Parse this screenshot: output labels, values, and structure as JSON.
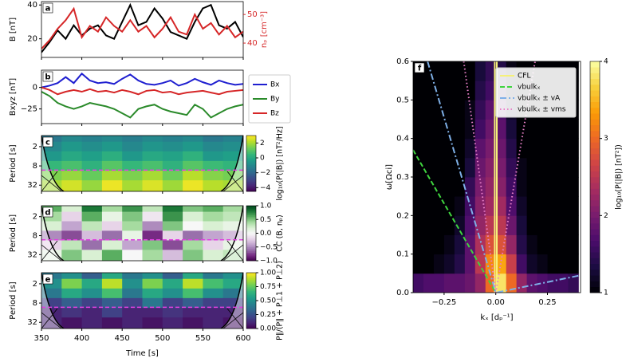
{
  "chart_data": [
    {
      "type": "line",
      "label": "a",
      "ylabel": "B [nT]",
      "y2label": "nₚ [cm⁻³]",
      "y2color": "#d62728",
      "x": [
        350,
        360,
        370,
        380,
        390,
        400,
        410,
        420,
        430,
        440,
        450,
        460,
        470,
        480,
        490,
        500,
        510,
        520,
        530,
        540,
        550,
        560,
        570,
        580,
        590,
        600
      ],
      "xlim": [
        350,
        600
      ],
      "xticks": [
        350,
        400,
        450,
        500,
        550,
        600
      ],
      "xticklabels": false,
      "ylim": [
        9,
        42
      ],
      "yticks": [
        20,
        40
      ],
      "y2lim": [
        35,
        54.5
      ],
      "y2ticks": [
        40,
        50
      ],
      "series": [
        {
          "name": "B",
          "color": "#000000",
          "values": [
            12,
            18,
            25,
            20,
            28,
            22,
            26,
            28,
            22,
            20,
            30,
            40,
            28,
            30,
            38,
            32,
            24,
            22,
            20,
            30,
            38,
            40,
            28,
            26,
            30,
            21
          ]
        },
        {
          "name": "nₚ",
          "color": "#d62728",
          "axis": "y2",
          "values": [
            38,
            41,
            45,
            48,
            52,
            42,
            46,
            44,
            49,
            46,
            44,
            48,
            44,
            46,
            42,
            45,
            49,
            44,
            43,
            50,
            45,
            47,
            43,
            46,
            42,
            44
          ]
        }
      ]
    },
    {
      "type": "line",
      "label": "b",
      "ylabel": "Bxyz [nT]",
      "legend": "outside right",
      "x": [
        350,
        360,
        370,
        380,
        390,
        400,
        410,
        420,
        430,
        440,
        450,
        460,
        470,
        480,
        490,
        500,
        510,
        520,
        530,
        540,
        550,
        560,
        570,
        580,
        590,
        600
      ],
      "xlim": [
        350,
        600
      ],
      "xticks": [
        350,
        400,
        450,
        500,
        550,
        600
      ],
      "xticklabels": false,
      "ylim": [
        -42,
        20
      ],
      "yticks": [
        {
          "value": -25,
          "label": "−25"
        },
        0
      ],
      "series": [
        {
          "name": "Bx",
          "color": "#1f1fd0",
          "values": [
            0,
            2,
            5,
            12,
            5,
            16,
            8,
            5,
            6,
            4,
            10,
            15,
            8,
            4,
            3,
            5,
            8,
            2,
            5,
            10,
            6,
            3,
            8,
            5,
            3,
            4
          ]
        },
        {
          "name": "By",
          "color": "#2a8a2a",
          "values": [
            -5,
            -10,
            -18,
            -22,
            -25,
            -22,
            -18,
            -20,
            -22,
            -25,
            -30,
            -35,
            -25,
            -22,
            -20,
            -25,
            -28,
            -30,
            -32,
            -20,
            -25,
            -35,
            -30,
            -25,
            -22,
            -20
          ]
        },
        {
          "name": "Bz",
          "color": "#d62728",
          "values": [
            0,
            -3,
            -8,
            -5,
            -3,
            -5,
            -2,
            -5,
            -4,
            -6,
            -3,
            -5,
            -8,
            -4,
            -3,
            -6,
            -5,
            -8,
            -6,
            -5,
            -4,
            -6,
            -8,
            -5,
            -4,
            -3
          ]
        }
      ]
    },
    {
      "type": "heatmap",
      "label": "c",
      "ylabel": "Period [s]",
      "colormap": "viridis",
      "ylog": true,
      "yinvert": true,
      "xlim": [
        350,
        600
      ],
      "xticks": [
        350,
        400,
        450,
        500,
        550,
        600
      ],
      "xticklabels": false,
      "ylim": [
        0.9,
        50
      ],
      "yticks": [
        2,
        8,
        32
      ],
      "xbins": [
        350,
        375,
        400,
        425,
        450,
        475,
        500,
        525,
        550,
        575,
        600
      ],
      "ybins": [
        0.9,
        1.4,
        2.8,
        5.6,
        11.3,
        22.6,
        50
      ],
      "z": [
        [
          -1.5,
          -1,
          -1.2,
          -1,
          -1.3,
          -1,
          -1.2,
          -1,
          -1.5,
          -1.2
        ],
        [
          -1,
          -0.5,
          -0.8,
          -0.5,
          -1,
          -0.6,
          -0.8,
          -0.5,
          -1,
          -0.8
        ],
        [
          -0.5,
          0,
          -0.3,
          0.2,
          -0.5,
          0,
          -0.2,
          0.3,
          -0.5,
          -0.3
        ],
        [
          0.5,
          0.8,
          0.3,
          1,
          0.5,
          0.8,
          0.3,
          1,
          0.6,
          0.4
        ],
        [
          1.5,
          1.8,
          1.2,
          2,
          1.5,
          2,
          1.3,
          2.2,
          1.6,
          1.4
        ],
        [
          2,
          2.5,
          1.8,
          2.8,
          2,
          2.6,
          1.9,
          2.8,
          2.2,
          2
        ]
      ],
      "colorbar": {
        "clim": [
          -4.5,
          3
        ],
        "ticks": [
          {
            "value": -4,
            "label": "−4"
          },
          {
            "value": -2,
            "label": "−2"
          },
          0,
          2
        ],
        "label": "log₁₀(P(|B|) [nT²/Hz]"
      }
    },
    {
      "type": "heatmap",
      "label": "d",
      "ylabel": "Period [s]",
      "colormap": "PRGn",
      "ylog": true,
      "yinvert": true,
      "xlim": [
        350,
        600
      ],
      "xticks": [
        350,
        400,
        450,
        500,
        550,
        600
      ],
      "xticklabels": false,
      "ylim": [
        0.9,
        50
      ],
      "yticks": [
        2,
        8,
        32
      ],
      "xbins": [
        350,
        375,
        400,
        425,
        450,
        475,
        500,
        525,
        550,
        575,
        600
      ],
      "ybins": [
        0.9,
        1.4,
        2.8,
        5.6,
        11.3,
        22.6,
        50
      ],
      "z": [
        [
          0.6,
          0.2,
          0.8,
          0.4,
          0.7,
          0.3,
          0.8,
          0.5,
          0.6,
          0.4
        ],
        [
          0.4,
          -0.2,
          0.6,
          0.1,
          0.5,
          -0.1,
          0.7,
          0.2,
          0.4,
          0.3
        ],
        [
          0.2,
          -0.4,
          0.3,
          -0.2,
          0.4,
          -0.5,
          0.5,
          0,
          0.2,
          0.1
        ],
        [
          -0.5,
          -0.7,
          -0.3,
          -0.6,
          0.1,
          -0.8,
          -0.2,
          -0.6,
          -0.4,
          -0.3
        ],
        [
          -0.2,
          0.3,
          -0.6,
          0.2,
          -0.4,
          0.5,
          -0.7,
          0.4,
          -0.2,
          0.1
        ],
        [
          0.1,
          0.5,
          0.2,
          0.6,
          0,
          0.4,
          -0.3,
          0.5,
          0.2,
          0.3
        ]
      ],
      "colorbar": {
        "clim": [
          -1,
          1
        ],
        "ticks": [
          {
            "value": -1,
            "label": "−1.0"
          },
          {
            "value": -0.5,
            "label": "−0.5"
          },
          {
            "value": 0,
            "label": "0.0"
          },
          {
            "value": 0.5,
            "label": "0.5"
          },
          {
            "value": 1,
            "label": "1.0"
          }
        ],
        "label": "CC (B, nₚ)"
      }
    },
    {
      "type": "heatmap",
      "label": "e",
      "ylabel": "Period [s]",
      "xlabel": "Time [s]",
      "colormap": "viridis",
      "ylog": true,
      "yinvert": true,
      "xlim": [
        350,
        600
      ],
      "xticks": [
        350,
        400,
        450,
        500,
        550,
        600
      ],
      "ylim": [
        0.9,
        50
      ],
      "yticks": [
        2,
        8,
        32
      ],
      "xbins": [
        350,
        375,
        400,
        425,
        450,
        475,
        500,
        525,
        550,
        575,
        600
      ],
      "ybins": [
        0.9,
        1.4,
        2.8,
        5.6,
        11.3,
        22.6,
        50
      ],
      "z": [
        [
          0.4,
          0.5,
          0.3,
          0.6,
          0.4,
          0.5,
          0.3,
          0.6,
          0.4,
          0.5
        ],
        [
          0.5,
          0.8,
          0.6,
          0.9,
          0.5,
          0.8,
          0.6,
          0.9,
          0.7,
          0.6
        ],
        [
          0.4,
          0.6,
          0.5,
          0.7,
          0.4,
          0.6,
          0.5,
          0.7,
          0.5,
          0.4
        ],
        [
          0.2,
          0.3,
          0.2,
          0.3,
          0.2,
          0.4,
          0.2,
          0.3,
          0.2,
          0.2
        ],
        [
          0.1,
          0.15,
          0.1,
          0.2,
          0.1,
          0.1,
          0.15,
          0.1,
          0.1,
          0.1
        ],
        [
          0.1,
          0.05,
          0.1,
          0.05,
          0.1,
          0.05,
          0.1,
          0.05,
          0.1,
          0.05
        ]
      ],
      "colorbar": {
        "clim": [
          0,
          1
        ],
        "ticks": [
          {
            "value": 0,
            "label": "0.00"
          },
          {
            "value": 0.25,
            "label": "0.25"
          },
          {
            "value": 0.5,
            "label": "0.50"
          },
          {
            "value": 0.75,
            "label": "0.75"
          },
          {
            "value": 1,
            "label": "1.00"
          }
        ],
        "label": "P∥/(P∥ + P⊥1 + P⊥2)"
      }
    },
    {
      "type": "heatmap",
      "label": "f",
      "xlabel": "kₓ [dₚ⁻¹]",
      "ylabel": "ω[Ωci]",
      "colormap": "inferno",
      "legend": "upper right",
      "xlim": [
        -0.4,
        0.41
      ],
      "xticks": [
        {
          "value": -0.25,
          "label": "−0.25"
        },
        {
          "value": 0,
          "label": "0.00"
        },
        {
          "value": 0.25,
          "label": "0.25"
        }
      ],
      "ylim": [
        0,
        0.6
      ],
      "yticks": [
        {
          "value": 0,
          "label": "0.0"
        },
        {
          "value": 0.1,
          "label": "0.1"
        },
        {
          "value": 0.2,
          "label": "0.2"
        },
        {
          "value": 0.3,
          "label": "0.3"
        },
        {
          "value": 0.4,
          "label": "0.4"
        },
        {
          "value": 0.5,
          "label": "0.5"
        },
        {
          "value": 0.6,
          "label": "0.6"
        }
      ],
      "xbins": [
        -0.4,
        -0.35,
        -0.3,
        -0.25,
        -0.2,
        -0.15,
        -0.1,
        -0.05,
        0,
        0.05,
        0.1,
        0.15,
        0.2,
        0.25,
        0.3,
        0.35,
        0.4
      ],
      "ybins": [
        0,
        0.05,
        0.1,
        0.15,
        0.2,
        0.25,
        0.3,
        0.35,
        0.4,
        0.45,
        0.5,
        0.55,
        0.6
      ],
      "z": [
        [
          1.6,
          1.7,
          1.7,
          1.8,
          1.8,
          1.9,
          2.2,
          3.0,
          3.8,
          3.0,
          2.2,
          1.8,
          1.7,
          1.6,
          1.6,
          1.5
        ],
        [
          1,
          1,
          1.1,
          1.2,
          1.4,
          1.8,
          2.5,
          3.2,
          3.4,
          2.6,
          1.6,
          1.2,
          1.1,
          1,
          1,
          1
        ],
        [
          1,
          1,
          1,
          1.1,
          1.3,
          1.8,
          2.4,
          2.8,
          2.8,
          2.2,
          1.4,
          1.1,
          1,
          1,
          1,
          1
        ],
        [
          1,
          1,
          1,
          1,
          1.2,
          1.7,
          2.2,
          2.5,
          2.5,
          1.9,
          1.3,
          1,
          1,
          1,
          1,
          1
        ],
        [
          1,
          1,
          1,
          1,
          1.1,
          1.6,
          2.1,
          2.3,
          2.3,
          1.7,
          1.2,
          1,
          1,
          1,
          1,
          1
        ],
        [
          1,
          1,
          1,
          1,
          1,
          1.5,
          2,
          2.2,
          2.1,
          1.6,
          1.1,
          1,
          1,
          1,
          1,
          1
        ],
        [
          1,
          1,
          1,
          1,
          1,
          1.3,
          1.9,
          2.1,
          2,
          1.5,
          1.1,
          1,
          1,
          1,
          1,
          1
        ],
        [
          1,
          1,
          1,
          1,
          1,
          1.2,
          1.8,
          2,
          1.9,
          1.4,
          1,
          1,
          1,
          1,
          1,
          1
        ],
        [
          1,
          1,
          1,
          1,
          1,
          1.1,
          1.6,
          1.9,
          1.8,
          1.3,
          1,
          1,
          1,
          1,
          1,
          1
        ],
        [
          1,
          1,
          1,
          1,
          1,
          1.1,
          1.5,
          1.8,
          1.7,
          1.2,
          1,
          1,
          1,
          1,
          1,
          1
        ],
        [
          1,
          1,
          1,
          1,
          1,
          1,
          1.4,
          1.6,
          1.5,
          1.1,
          1,
          1,
          1,
          1,
          1,
          1
        ],
        [
          1,
          1,
          1,
          1,
          1,
          1,
          1.3,
          1.5,
          1.4,
          1.1,
          1,
          1,
          1,
          1,
          1,
          1
        ]
      ],
      "series": [
        {
          "name": "CFL",
          "color": "#f5f07a",
          "dash": "solid",
          "x": [
            -0.005,
            -0.005,
            0,
            0.005,
            0.005
          ],
          "values": [
            0,
            0.6,
            null,
            0.6,
            0
          ]
        },
        {
          "name": "vbulkₓ",
          "color": "#3fd43f",
          "dash": "dashed",
          "x": [
            -0.4,
            0
          ],
          "values": [
            0.37,
            0
          ]
        },
        {
          "name": "vbulkₓ ± vA",
          "color": "#7fb0e8",
          "dash": "dashdot",
          "x": [
            -0.33,
            0,
            0.41
          ],
          "values": [
            0.6,
            0,
            0.045
          ]
        },
        {
          "name": "vbulkₓ ± vms",
          "color": "#e87fc8",
          "dash": "dotted",
          "x": [
            -0.155,
            0,
            0.19
          ],
          "values": [
            0.6,
            0,
            0.6
          ]
        }
      ],
      "colorbar": {
        "clim": [
          1,
          4
        ],
        "ticks": [
          1,
          2,
          3,
          4
        ],
        "label": "log₁₀(P(|B|) [nT²])"
      }
    }
  ]
}
